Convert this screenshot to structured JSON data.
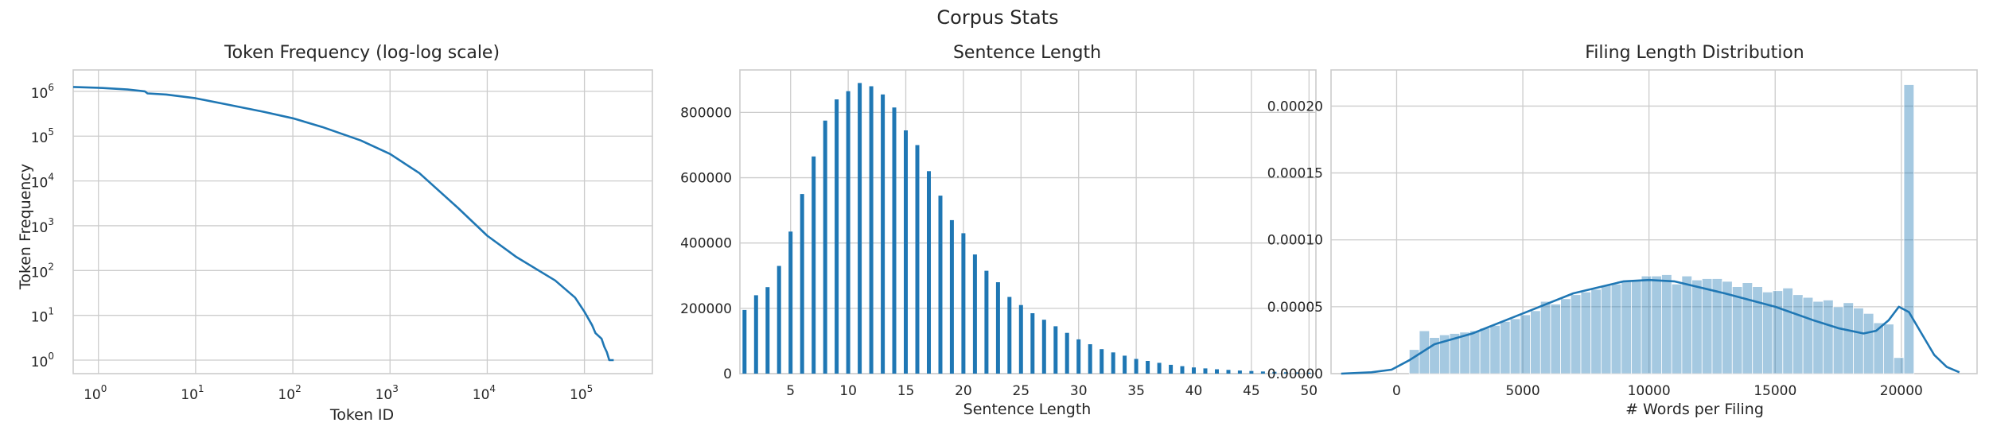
{
  "figure": {
    "title": "Corpus Stats"
  },
  "chart_data": [
    {
      "type": "line",
      "title": "Token Frequency (log-log scale)",
      "xlabel": "Token ID",
      "ylabel": "Token Frequency",
      "x_scale": "log",
      "y_scale": "log",
      "xlim": [
        0.55,
        500000
      ],
      "ylim": [
        0.5,
        3000000
      ],
      "x_ticks": [
        {
          "base": "10",
          "exp": "0",
          "value": 1
        },
        {
          "base": "10",
          "exp": "1",
          "value": 10
        },
        {
          "base": "10",
          "exp": "2",
          "value": 100
        },
        {
          "base": "10",
          "exp": "3",
          "value": 1000
        },
        {
          "base": "10",
          "exp": "4",
          "value": 10000
        },
        {
          "base": "10",
          "exp": "5",
          "value": 100000
        }
      ],
      "y_ticks": [
        {
          "base": "10",
          "exp": "0",
          "value": 1
        },
        {
          "base": "10",
          "exp": "1",
          "value": 10
        },
        {
          "base": "10",
          "exp": "2",
          "value": 100
        },
        {
          "base": "10",
          "exp": "3",
          "value": 1000
        },
        {
          "base": "10",
          "exp": "4",
          "value": 10000
        },
        {
          "base": "10",
          "exp": "5",
          "value": 100000
        },
        {
          "base": "10",
          "exp": "6",
          "value": 1000000
        }
      ],
      "grid": true,
      "color": "#1f77b4",
      "series": [
        {
          "x": [
            0.55,
            1,
            2,
            3,
            3.2,
            5,
            10,
            20,
            50,
            100,
            200,
            500,
            1000,
            2000,
            5000,
            10000,
            20000,
            50000,
            80000,
            100000,
            120000,
            130000,
            150000,
            160000,
            170000,
            180000,
            200000
          ],
          "y": [
            1250000,
            1200000,
            1100000,
            1000000,
            900000,
            850000,
            700000,
            520000,
            350000,
            250000,
            160000,
            80000,
            40000,
            15000,
            2500,
            600,
            200,
            60,
            25,
            12,
            6,
            4,
            3,
            2,
            1.5,
            1,
            1
          ]
        }
      ]
    },
    {
      "type": "bar",
      "title": "Sentence Length",
      "xlabel": "Sentence Length",
      "ylabel": "",
      "xlim": [
        0.6,
        50.6
      ],
      "ylim": [
        0,
        930000
      ],
      "x_ticks": [
        5,
        10,
        15,
        20,
        25,
        30,
        35,
        40,
        45,
        50
      ],
      "y_ticks": [
        0,
        200000,
        400000,
        600000,
        800000
      ],
      "grid": true,
      "color": "#1f77b4",
      "categories": [
        1,
        2,
        3,
        4,
        5,
        6,
        7,
        8,
        9,
        10,
        11,
        12,
        13,
        14,
        15,
        16,
        17,
        18,
        19,
        20,
        21,
        22,
        23,
        24,
        25,
        26,
        27,
        28,
        29,
        30,
        31,
        32,
        33,
        34,
        35,
        36,
        37,
        38,
        39,
        40,
        41,
        42,
        43,
        44,
        45,
        46,
        47,
        48,
        49,
        50
      ],
      "values": [
        195000,
        240000,
        265000,
        330000,
        435000,
        550000,
        665000,
        775000,
        840000,
        865000,
        890000,
        880000,
        855000,
        815000,
        745000,
        700000,
        620000,
        545000,
        470000,
        430000,
        365000,
        315000,
        280000,
        235000,
        210000,
        185000,
        165000,
        145000,
        125000,
        105000,
        90000,
        75000,
        65000,
        55000,
        45000,
        39000,
        33000,
        27000,
        23000,
        19000,
        16000,
        13500,
        11500,
        9500,
        8000,
        6500,
        5500,
        4500,
        3800,
        3000
      ]
    },
    {
      "type": "histogram",
      "title": "Filing Length Distribution",
      "xlabel": "# Words per Filing",
      "ylabel": "",
      "xlim": [
        -2600,
        23000
      ],
      "ylim": [
        0,
        0.000227
      ],
      "x_ticks": [
        0,
        5000,
        10000,
        15000,
        20000
      ],
      "y_ticks": [
        "0.00000",
        "0.00005",
        "0.00010",
        "0.00015",
        "0.00020"
      ],
      "y_tick_values": [
        0,
        5e-05,
        0.0001,
        0.00015,
        0.0002
      ],
      "grid": true,
      "bar_color": "#1f77b4",
      "bar_alpha": 0.4,
      "line_color": "#1f77b4",
      "bins": {
        "start": 500,
        "width": 400,
        "values": [
          1.8e-05,
          3.2e-05,
          2.7e-05,
          2.9e-05,
          3e-05,
          3.1e-05,
          3.2e-05,
          3.4e-05,
          3.6e-05,
          3.9e-05,
          4.1e-05,
          4.4e-05,
          4.7e-05,
          5.4e-05,
          5.2e-05,
          5.6e-05,
          5.9e-05,
          6.1e-05,
          6.3e-05,
          6.6e-05,
          6.7e-05,
          6.9e-05,
          7e-05,
          7.3e-05,
          7.3e-05,
          7.4e-05,
          6.7e-05,
          7.3e-05,
          7e-05,
          7.1e-05,
          7.1e-05,
          6.9e-05,
          6.5e-05,
          6.8e-05,
          6.5e-05,
          6.1e-05,
          6.2e-05,
          6.4e-05,
          5.9e-05,
          5.7e-05,
          5.4e-05,
          5.5e-05,
          5e-05,
          5.3e-05,
          4.9e-05,
          4.5e-05,
          3.8e-05,
          3.7e-05,
          1.2e-05,
          0.000216
        ]
      },
      "kde": {
        "x": [
          -2200,
          -1000,
          -200,
          500,
          1500,
          3000,
          5000,
          7000,
          9000,
          10000,
          11000,
          13000,
          15000,
          16500,
          17500,
          18500,
          19000,
          19500,
          19900,
          20300,
          20800,
          21300,
          21800,
          22300
        ],
        "y": [
          0,
          1e-06,
          3e-06,
          1e-05,
          2.2e-05,
          3e-05,
          4.5e-05,
          6e-05,
          6.9e-05,
          7e-05,
          6.9e-05,
          6e-05,
          5e-05,
          4e-05,
          3.4e-05,
          3e-05,
          3.2e-05,
          4e-05,
          5e-05,
          4.6e-05,
          3e-05,
          1.4e-05,
          5e-06,
          1e-06
        ]
      }
    }
  ]
}
